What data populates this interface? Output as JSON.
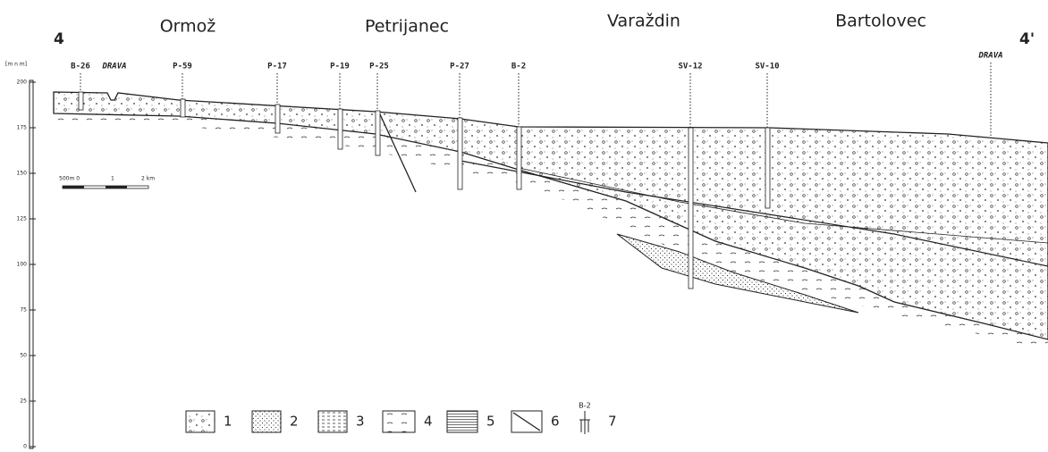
{
  "header": {
    "section_start": "4",
    "section_end": "4'"
  },
  "places": [
    "Ormož",
    "Petrijanec",
    "Varaždin",
    "Bartolovec"
  ],
  "axis": {
    "unit": "[m n m]",
    "ticks": [
      200,
      175,
      150,
      125,
      100,
      75,
      50,
      25,
      0
    ]
  },
  "boreholes": [
    "B-26",
    "DRAVA",
    "P-59",
    "P-17",
    "P-19",
    "P-25",
    "P-27",
    "B-2",
    "SV-12",
    "SV-10",
    "DRAVA"
  ],
  "scale": {
    "start": "500m 0",
    "mid": "1",
    "end": "2 km"
  },
  "legend": {
    "items": [
      "1",
      "2",
      "3",
      "4",
      "5",
      "6",
      "7"
    ],
    "borehole_example": "B-2"
  }
}
